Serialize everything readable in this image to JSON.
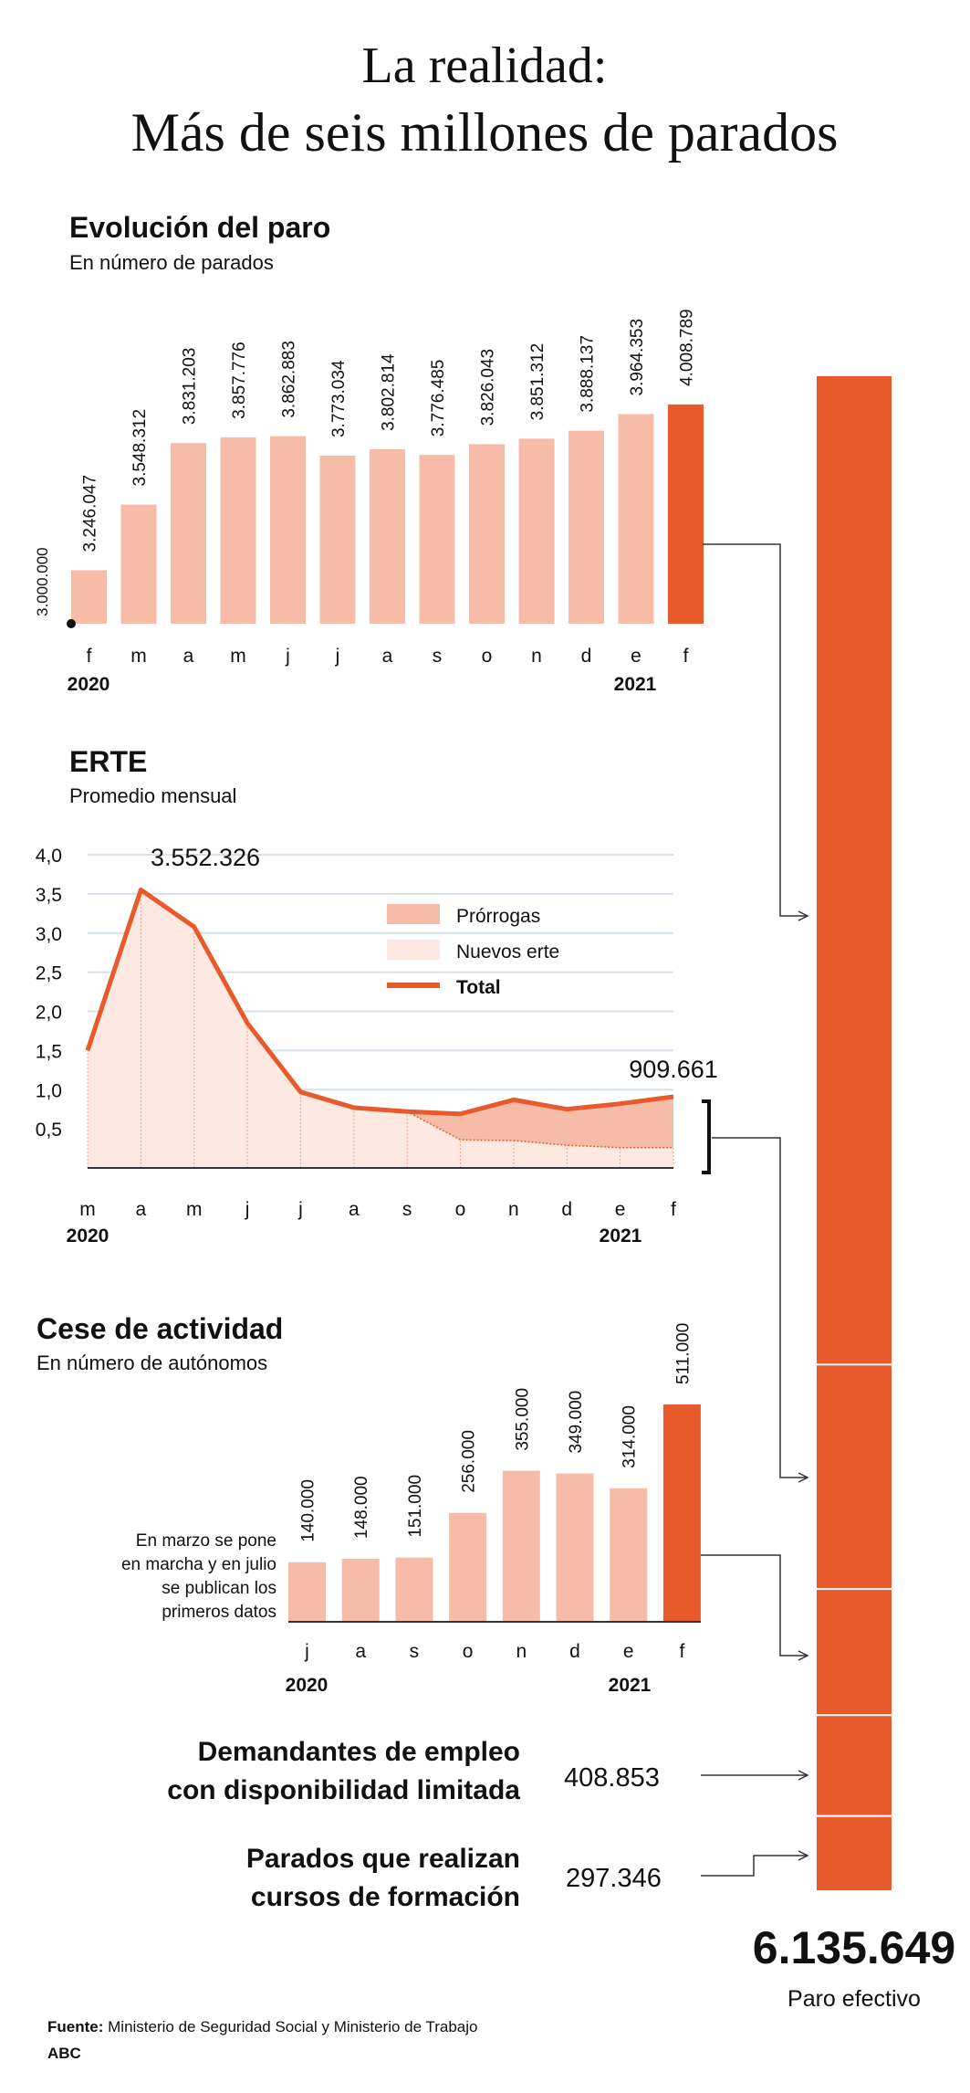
{
  "title": {
    "line1": "La realidad:",
    "line2": "Más de seis millones de parados"
  },
  "colors": {
    "accent": "#e85a2b",
    "light": "#f6bca8",
    "lighter": "#fde9e2",
    "grid": "#d6e1ea",
    "text": "#111111"
  },
  "chart_data": [
    {
      "type": "bar",
      "title": "Evolución del paro",
      "subtitle": "En número de parados",
      "categories": [
        "f",
        "m",
        "a",
        "m",
        "j",
        "j",
        "a",
        "s",
        "o",
        "n",
        "d",
        "e",
        "f"
      ],
      "values": [
        3246047,
        3548312,
        3831203,
        3857776,
        3862883,
        3773034,
        3802814,
        3776485,
        3826043,
        3851312,
        3888137,
        3964353,
        4008789
      ],
      "labels": [
        "3.246.047",
        "3.548.312",
        "3.831.203",
        "3.857.776",
        "3.862.883",
        "3.773.034",
        "3.802.814",
        "3.776.485",
        "3.826.043",
        "3.851.312",
        "3.888.137",
        "3.964.353",
        "4.008.789"
      ],
      "baseline_label": "3.000.000",
      "ylim": [
        3000000,
        4008789
      ],
      "years": {
        "start": "2020",
        "end": "2021"
      },
      "highlight_last": true
    },
    {
      "type": "area",
      "title": "ERTE",
      "subtitle": "Promedio mensual",
      "categories": [
        "m",
        "a",
        "m",
        "j",
        "j",
        "a",
        "s",
        "o",
        "n",
        "d",
        "e",
        "f"
      ],
      "yticks": [
        "0,5",
        "1,0",
        "1,5",
        "2,0",
        "2,5",
        "3,0",
        "3,5",
        "4,0"
      ],
      "ylim": [
        0,
        4.0
      ],
      "series": [
        {
          "name": "Total",
          "values": [
            1.5,
            3.552,
            3.08,
            1.85,
            0.97,
            0.77,
            0.72,
            0.69,
            0.87,
            0.75,
            0.82,
            0.91
          ]
        },
        {
          "name": "Nuevos erte",
          "values": [
            1.5,
            3.552,
            3.08,
            1.85,
            0.97,
            0.77,
            0.72,
            0.36,
            0.35,
            0.29,
            0.26,
            0.26
          ]
        }
      ],
      "legend": [
        "Prórrogas",
        "Nuevos erte",
        "Total"
      ],
      "annotations": {
        "peak": "3.552.326",
        "last": "909.661"
      },
      "years": {
        "start": "2020",
        "end": "2021"
      }
    },
    {
      "type": "bar",
      "title": "Cese de actividad",
      "subtitle": "En número de autónomos",
      "categories": [
        "j",
        "a",
        "s",
        "o",
        "n",
        "d",
        "e",
        "f"
      ],
      "values": [
        140000,
        148000,
        151000,
        256000,
        355000,
        349000,
        314000,
        511000
      ],
      "labels": [
        "140.000",
        "148.000",
        "151.000",
        "256.000",
        "355.000",
        "349.000",
        "314.000",
        "511.000"
      ],
      "note": [
        "En marzo se pone",
        "en marcha y en julio",
        "se publican los",
        "primeros datos"
      ],
      "years": {
        "start": "2020",
        "end": "2021"
      },
      "highlight_last": true
    },
    {
      "type": "bar",
      "title": "Paro efectivo",
      "stacked_values": [
        4008789,
        909661,
        511000,
        408853,
        297346
      ],
      "total": "6.135.649"
    }
  ],
  "extras": {
    "demandantes": {
      "label": [
        "Demandantes de empleo",
        "con disponibilidad limitada"
      ],
      "value": "408.853"
    },
    "formacion": {
      "label": [
        "Parados que realizan",
        "cursos de formación"
      ],
      "value": "297.346"
    }
  },
  "total": {
    "value": "6.135.649",
    "label": "Paro efectivo"
  },
  "footer": {
    "source_label": "Fuente:",
    "source": "Ministerio de Seguridad Social y Ministerio de Trabajo",
    "brand": "ABC"
  }
}
